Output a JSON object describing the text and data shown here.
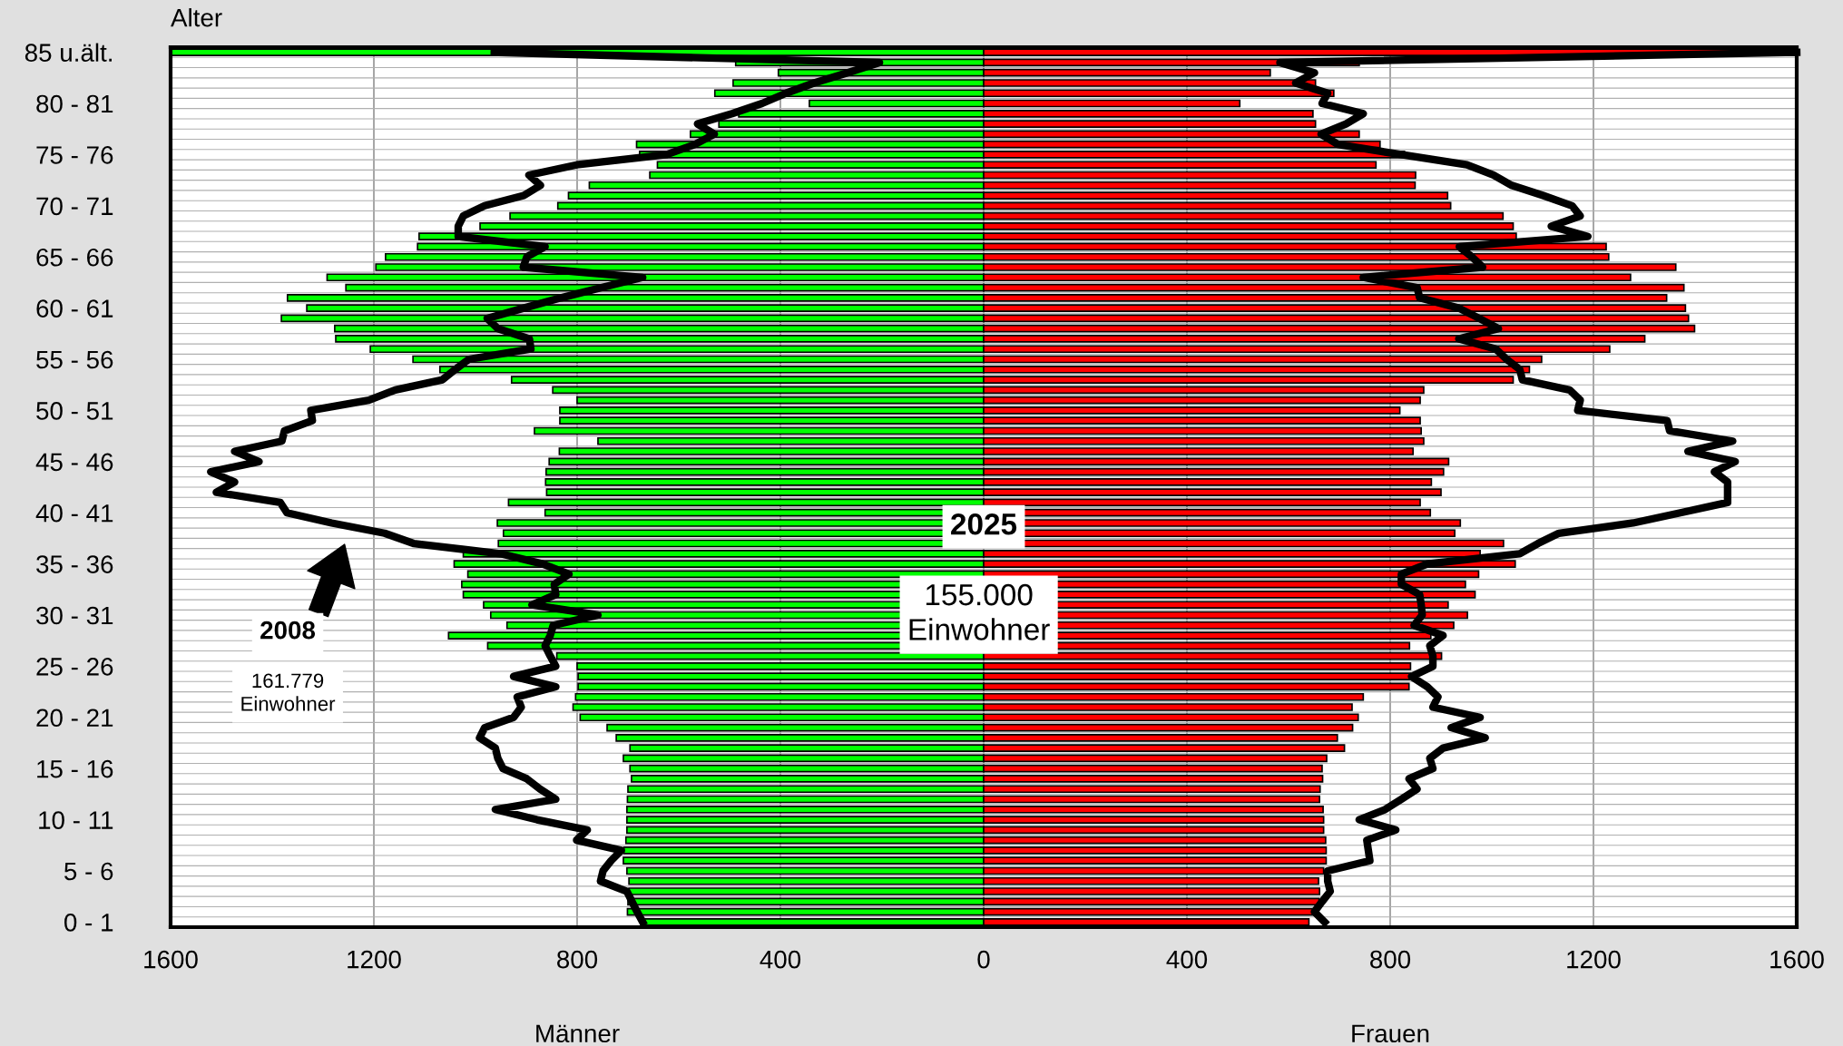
{
  "chart_data": {
    "type": "bar",
    "orientation": "horizontal",
    "ylabel": "Alter",
    "categories": [
      "85 u.ält.",
      null,
      null,
      null,
      null,
      "80 - 81",
      null,
      null,
      null,
      null,
      "75 - 76",
      null,
      null,
      null,
      null,
      "70 - 71",
      null,
      null,
      null,
      null,
      "65 - 66",
      null,
      null,
      null,
      null,
      "60 - 61",
      null,
      null,
      null,
      null,
      "55 - 56",
      null,
      null,
      null,
      null,
      "50 - 51",
      null,
      null,
      null,
      null,
      "45 - 46",
      null,
      null,
      null,
      null,
      "40 - 41",
      null,
      null,
      null,
      null,
      "35 - 36",
      null,
      null,
      null,
      null,
      "30 - 31",
      null,
      null,
      null,
      null,
      "25 - 26",
      null,
      null,
      null,
      null,
      "20 - 21",
      null,
      null,
      null,
      null,
      "15 - 16",
      null,
      null,
      null,
      null,
      "10 - 11",
      null,
      null,
      null,
      null,
      "5 - 6",
      null,
      null,
      null,
      null,
      "0 - 1"
    ],
    "series": [
      {
        "color": "#00ff00",
        "values": [
          -1600,
          -488,
          -404,
          -493,
          -529,
          -343,
          -482,
          -521,
          -577,
          -683,
          -677,
          -642,
          -657,
          -776,
          -817,
          -838,
          -932,
          -991,
          -1111,
          -1114,
          -1177,
          -1196,
          -1292,
          -1255,
          -1370,
          -1332,
          -1382,
          -1277,
          -1275,
          -1207,
          -1123,
          -1070,
          -929,
          -848,
          -800,
          -834,
          -834,
          -884,
          -759,
          -835,
          -855,
          -861,
          -862,
          -860,
          -935,
          -863,
          -957,
          -945,
          -955,
          -1024,
          -1042,
          -1015,
          -1027,
          -1024,
          -984,
          -970,
          -938,
          -1053,
          -976,
          -840,
          -800,
          -798,
          -798,
          -803,
          -808,
          -794,
          -741,
          -723,
          -696,
          -709,
          -696,
          -693,
          -700,
          -701,
          -702,
          -702,
          -702,
          -704,
          -708,
          -709,
          -702,
          -698,
          -698,
          -700,
          -701,
          -674
        ]
      },
      {
        "color": "#ff0000",
        "values": [
          1600,
          739,
          564,
          653,
          689,
          504,
          648,
          653,
          739,
          780,
          828,
          772,
          850,
          849,
          913,
          919,
          1022,
          1042,
          1048,
          1225,
          1230,
          1362,
          1273,
          1378,
          1344,
          1381,
          1387,
          1399,
          1301,
          1232,
          1098,
          1074,
          1042,
          866,
          859,
          819,
          859,
          861,
          866,
          845,
          915,
          905,
          881,
          900,
          859,
          879,
          938,
          927,
          1023,
          977,
          1046,
          974,
          948,
          967,
          914,
          952,
          925,
          880,
          838,
          901,
          840,
          840,
          837,
          747,
          725,
          737,
          726,
          696,
          710,
          675,
          666,
          667,
          662,
          661,
          668,
          669,
          669,
          673,
          674,
          674,
          669,
          659,
          661,
          660,
          656,
          640
        ]
      },
      {
        "type": "line",
        "color": "#000000",
        "values": [
          -963,
          -205,
          -268,
          -334,
          -389,
          -436,
          -495,
          -563,
          -530,
          -568,
          -624,
          -801,
          -895,
          -872,
          -905,
          -982,
          -1024,
          -1034,
          -1034,
          -863,
          -899,
          -906,
          -671,
          -752,
          -832,
          -905,
          -977,
          -956,
          -894,
          -891,
          -1013,
          -1040,
          -1065,
          -1158,
          -1210,
          -1324,
          -1321,
          -1376,
          -1381,
          -1474,
          -1426,
          -1521,
          -1474,
          -1510,
          -1384,
          -1371,
          -1283,
          -1179,
          -1122,
          -951,
          -868,
          -816,
          -845,
          -842,
          -889,
          -759,
          -847,
          -853,
          -863,
          -853,
          -842,
          -925,
          -842,
          -918,
          -910,
          -925,
          -982,
          -992,
          -961,
          -956,
          -946,
          -899,
          -873,
          -842,
          -961,
          -879,
          -780,
          -801,
          -713,
          -733,
          -749,
          -754,
          -702,
          -692,
          -682,
          -671
        ]
      },
      {
        "type": "line",
        "color": "#000000",
        "values": [
          1600,
          583,
          651,
          614,
          677,
          666,
          747,
          713,
          664,
          697,
          822,
          951,
          1003,
          1039,
          1101,
          1158,
          1174,
          1117,
          1189,
          936,
          961,
          982,
          747,
          853,
          858,
          935,
          975,
          1013,
          935,
          1008,
          1029,
          1055,
          1060,
          1153,
          1174,
          1169,
          1345,
          1350,
          1474,
          1386,
          1479,
          1438,
          1464,
          1464,
          1464,
          1371,
          1278,
          1132,
          1091,
          1055,
          873,
          822,
          822,
          858,
          861,
          863,
          847,
          904,
          878,
          884,
          884,
          842,
          873,
          894,
          884,
          977,
          920,
          987,
          904,
          878,
          884,
          837,
          853,
          822,
          790,
          739,
          811,
          754,
          757,
          760,
          677,
          677,
          682,
          666,
          651,
          671
        ]
      }
    ],
    "xlim": [
      -1600,
      1600
    ],
    "xticks": [
      {
        "value": -1600,
        "label": "1600"
      },
      {
        "value": -1200,
        "label": "1200"
      },
      {
        "value": -800,
        "label": "800"
      },
      {
        "value": -400,
        "label": "400"
      },
      0,
      400,
      800,
      1200,
      1600
    ],
    "grid": true,
    "stacked": true,
    "annotations": [
      "2025",
      "155.000\nEinwohner",
      "2008",
      "161.779\nEinwohner",
      "Männer",
      "Frauen"
    ]
  }
}
